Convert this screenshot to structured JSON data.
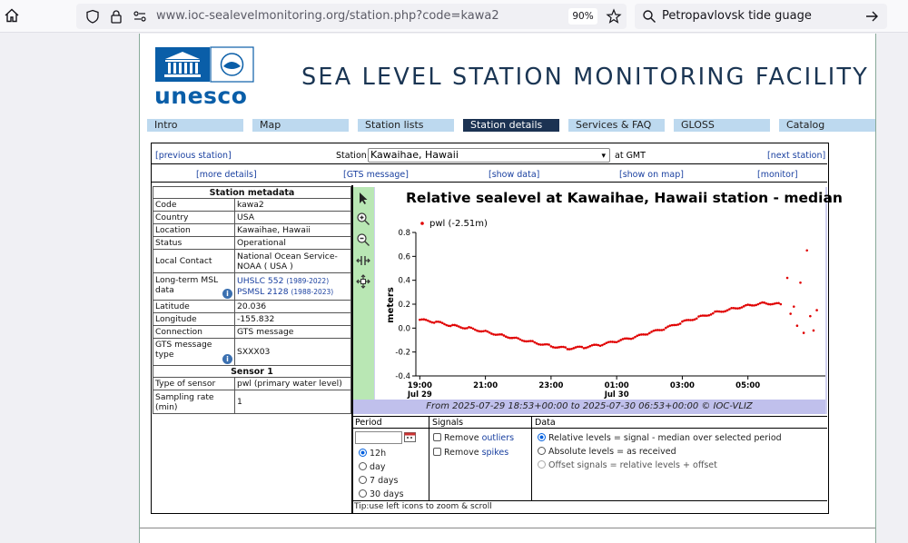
{
  "browser": {
    "url_host": "www.ioc-sealevelmonitoring.org",
    "url_path": "/station.php?code=kawa2",
    "zoom": "90%",
    "search": "Petropavlovsk tide guage"
  },
  "site": {
    "logo_text": "unesco",
    "title": "SEA LEVEL STATION MONITORING FACILITY",
    "nav": [
      "Intro",
      "Map",
      "Station lists",
      "Station details",
      "Services & FAQ",
      "GLOSS",
      "Catalog"
    ],
    "active_nav": "Station details"
  },
  "station_bar": {
    "previous": "[previous station]",
    "label": "Station",
    "selected": "Kawaihae, Hawaii",
    "suffix": "at GMT",
    "next": "[next station]"
  },
  "links": [
    "[more details]",
    "[GTS message]",
    "[show data]",
    "[show on map]",
    "[monitor]"
  ],
  "metadata": {
    "header": "Station metadata",
    "rows": [
      {
        "key": "Code",
        "value": "kawa2"
      },
      {
        "key": "Country",
        "value": "USA"
      },
      {
        "key": "Location",
        "value": "Kawaihae, Hawaii"
      },
      {
        "key": "Status",
        "value": "Operational"
      },
      {
        "key": "Local Contact",
        "value": "National Ocean Service-NOAA ( USA )"
      },
      {
        "key": "Long-term MSL data",
        "value1": "UHSLC 552",
        "value1_years": "(1989-2022)",
        "value2": "PSMSL 2128",
        "value2_years": "(1988-2023)"
      },
      {
        "key": "Latitude",
        "value": "20.036"
      },
      {
        "key": "Longitude",
        "value": "-155.832"
      },
      {
        "key": "Connection",
        "value": "GTS message"
      },
      {
        "key": "GTS message type",
        "value": "SXXX03"
      }
    ],
    "sensor_header": "Sensor 1",
    "sensor_rows": [
      {
        "key": "Type of sensor",
        "value": "pwl (primary water level)"
      },
      {
        "key": "Sampling rate (min)",
        "value": "1"
      }
    ]
  },
  "chart_data": {
    "type": "scatter",
    "title": "Relative sealevel at Kawaihae, Hawaii station - median",
    "ylabel": "meters",
    "legend": "pwl (-2.51m)",
    "legend_position": "top-left",
    "color": "#e00000",
    "ylim": [
      -0.4,
      0.8
    ],
    "yticks": [
      "0.8",
      "0.6",
      "0.4",
      "0.2",
      "0.0",
      "-0.2",
      "-0.4"
    ],
    "xlim": [
      18.88,
      31.25
    ],
    "xticks": [
      {
        "hour": 19,
        "label": "19:00",
        "sub": "Jul 29"
      },
      {
        "hour": 21,
        "label": "21:00",
        "sub": ""
      },
      {
        "hour": 23,
        "label": "23:00",
        "sub": ""
      },
      {
        "hour": 25,
        "label": "01:00",
        "sub": "Jul 30"
      },
      {
        "hour": 27,
        "label": "03:00",
        "sub": ""
      },
      {
        "hour": 29,
        "label": "05:00",
        "sub": ""
      }
    ],
    "grid": false,
    "series": [
      {
        "x": [
          19.0,
          19.5,
          20.0,
          20.5,
          21.0,
          21.5,
          22.0,
          22.5,
          23.0,
          23.5,
          24.0,
          24.5,
          25.0,
          25.5,
          26.0,
          26.5,
          27.0,
          27.5,
          28.0,
          28.5,
          29.0,
          29.5,
          30.0
        ],
        "y": [
          0.07,
          0.05,
          0.02,
          0.0,
          -0.03,
          -0.06,
          -0.09,
          -0.12,
          -0.15,
          -0.17,
          -0.16,
          -0.14,
          -0.11,
          -0.08,
          -0.04,
          0.0,
          0.05,
          0.09,
          0.13,
          0.16,
          0.19,
          0.21,
          0.2
        ]
      },
      {
        "x": [
          30.2,
          30.3,
          30.4,
          30.5,
          30.6,
          30.7,
          30.8,
          30.9,
          31.0,
          31.1
        ],
        "y": [
          0.42,
          0.12,
          0.18,
          0.02,
          0.38,
          -0.04,
          0.65,
          0.1,
          -0.02,
          0.15
        ]
      }
    ]
  },
  "date_range": {
    "prefix": "From",
    "from": "2025-07-29 18:53+00:00",
    "to_word": "to",
    "to": "2025-07-30 06:53+00:00",
    "credit": "© IOC-VLIZ"
  },
  "controls": {
    "period_header": "Period",
    "signals_header": "Signals",
    "data_header": "Data",
    "period_options": [
      "12h",
      "day",
      "7 days",
      "30 days"
    ],
    "period_selected": "12h",
    "remove_outliers_prefix": "Remove ",
    "remove_outliers": "outliers",
    "remove_spikes_prefix": "Remove ",
    "remove_spikes": "spikes",
    "data_options": [
      "Relative levels = signal - median over selected period",
      "Absolute levels = as received",
      "Offset signals = relative levels + offset"
    ],
    "tip": "Tip:use left icons to zoom & scroll"
  }
}
